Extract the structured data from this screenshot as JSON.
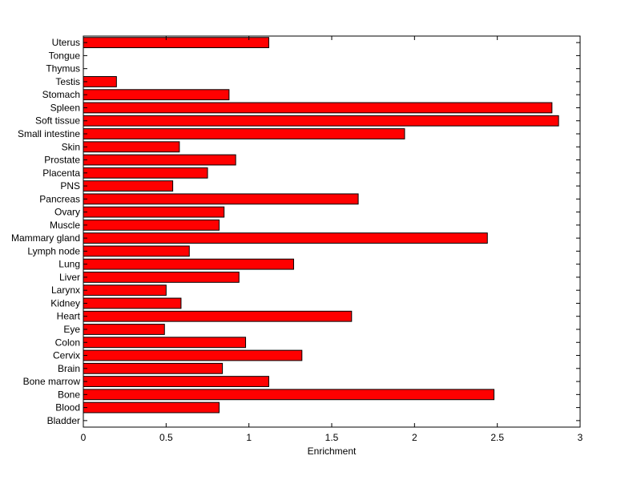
{
  "chart_data": {
    "type": "bar",
    "orientation": "horizontal",
    "title": "",
    "xlabel": "Enrichment",
    "ylabel": "",
    "xlim": [
      0,
      3
    ],
    "x_ticks": [
      0,
      0.5,
      1,
      1.5,
      2,
      2.5,
      3
    ],
    "x_tick_labels": [
      "0",
      "0.5",
      "1",
      "1.5",
      "2",
      "2.5",
      "3"
    ],
    "grid": false,
    "legend": "none",
    "bar_color": "#ff0000",
    "bar_edge_color": "#000000",
    "categories": [
      "Bladder",
      "Blood",
      "Bone",
      "Bone marrow",
      "Brain",
      "Cervix",
      "Colon",
      "Eye",
      "Heart",
      "Kidney",
      "Larynx",
      "Liver",
      "Lung",
      "Lymph node",
      "Mammary gland",
      "Muscle",
      "Ovary",
      "Pancreas",
      "PNS",
      "Placenta",
      "Prostate",
      "Skin",
      "Small intestine",
      "Soft tissue",
      "Spleen",
      "Stomach",
      "Testis",
      "Thymus",
      "Tongue",
      "Uterus"
    ],
    "values": [
      0,
      0.82,
      2.48,
      1.12,
      0.84,
      1.32,
      0.98,
      0.49,
      1.62,
      0.59,
      0.5,
      0.94,
      1.27,
      0.64,
      2.44,
      0.82,
      0.85,
      1.66,
      0.54,
      0.75,
      0.92,
      0.58,
      1.94,
      2.87,
      2.83,
      0.88,
      0.2,
      0,
      0,
      1.12
    ]
  }
}
